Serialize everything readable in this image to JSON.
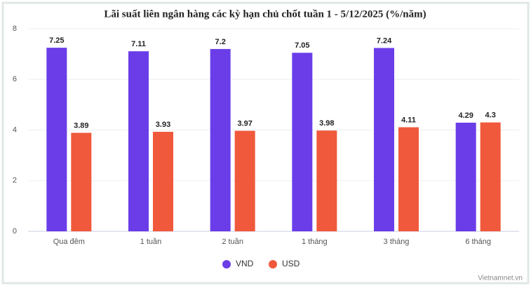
{
  "chart_data": {
    "type": "bar",
    "title": "Lãi suất liên ngân hàng các kỳ hạn chủ chốt tuần 1 - 5/12/2025 (%/năm)",
    "categories": [
      "Qua đêm",
      "1 tuần",
      "2 tuần",
      "1 tháng",
      "3 tháng",
      "6 tháng"
    ],
    "series": [
      {
        "name": "VND",
        "color": "#6a3de8",
        "values": [
          7.25,
          7.11,
          7.2,
          7.05,
          7.24,
          4.29
        ]
      },
      {
        "name": "USD",
        "color": "#f0593b",
        "values": [
          3.89,
          3.93,
          3.97,
          3.98,
          4.11,
          4.3
        ]
      }
    ],
    "ylim": [
      0,
      8
    ],
    "yticks": [
      0,
      2,
      4,
      6,
      8
    ],
    "grid": true,
    "source": "Vietnamnet.vn"
  }
}
